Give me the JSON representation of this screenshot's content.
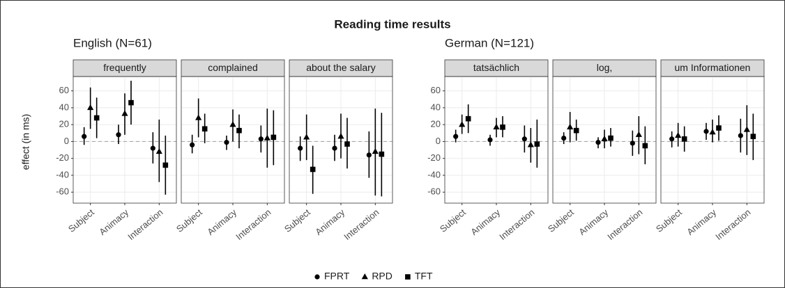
{
  "chart_data": {
    "type": "pointrange",
    "title": "Reading time results",
    "y_label": "effect (in ms)",
    "categories": [
      "Subject",
      "Animacy",
      "Interaction"
    ],
    "ylim": [
      -73,
      77
    ],
    "yticks": [
      -60,
      -40,
      -20,
      0,
      20,
      40,
      60
    ],
    "reference_line": 0,
    "grid": true,
    "legend": "bottom",
    "series": [
      {
        "name": "FPRT",
        "marker": "circle",
        "color": "#000000"
      },
      {
        "name": "RPD",
        "marker": "triangle",
        "color": "#000000"
      },
      {
        "name": "TFT",
        "marker": "square",
        "color": "#000000"
      }
    ],
    "groups": [
      {
        "title": "English (N=61)",
        "panels": [
          {
            "title": "frequently",
            "series": [
              {
                "values": [
                  6,
                  8,
                  -8
                ],
                "lower": [
                  -4,
                  -3,
                  -26
                ],
                "upper": [
                  17,
                  20,
                  11
                ]
              },
              {
                "values": [
                  40,
                  33,
                  -12
                ],
                "lower": [
                  15,
                  8,
                  -48
                ],
                "upper": [
                  64,
                  57,
                  26
                ]
              },
              {
                "values": [
                  28,
                  46,
                  -28
                ],
                "lower": [
                  4,
                  20,
                  -63
                ],
                "upper": [
                  52,
                  72,
                  7
                ]
              }
            ]
          },
          {
            "title": "complained",
            "series": [
              {
                "values": [
                  -4,
                  -1,
                  3
                ],
                "lower": [
                  -14,
                  -10,
                  -13
                ],
                "upper": [
                  8,
                  7,
                  19
                ]
              },
              {
                "values": [
                  28,
                  20,
                  4
                ],
                "lower": [
                  5,
                  0,
                  -31
                ],
                "upper": [
                  51,
                  38,
                  39
                ]
              },
              {
                "values": [
                  15,
                  13,
                  5
                ],
                "lower": [
                  -2,
                  -8,
                  -28
                ],
                "upper": [
                  33,
                  32,
                  37
                ]
              }
            ]
          },
          {
            "title": "about the salary",
            "series": [
              {
                "values": [
                  -8,
                  -8,
                  -16
                ],
                "lower": [
                  -23,
                  -23,
                  -43
                ],
                "upper": [
                  6,
                  8,
                  12
                ]
              },
              {
                "values": [
                  5,
                  6,
                  -12
                ],
                "lower": [
                  -22,
                  -20,
                  -64
                ],
                "upper": [
                  32,
                  33,
                  39
                ]
              },
              {
                "values": [
                  -33,
                  -3,
                  -15
                ],
                "lower": [
                  -62,
                  -32,
                  -65
                ],
                "upper": [
                  -5,
                  28,
                  34
                ]
              }
            ]
          }
        ]
      },
      {
        "title": "German (N=121)",
        "panels": [
          {
            "title": "tatsächlich",
            "series": [
              {
                "values": [
                  6,
                  2,
                  3
                ],
                "lower": [
                  -1,
                  -5,
                  -13
                ],
                "upper": [
                  14,
                  8,
                  19
                ]
              },
              {
                "values": [
                  20,
                  17,
                  -4
                ],
                "lower": [
                  9,
                  5,
                  -25
                ],
                "upper": [
                  32,
                  28,
                  16
                ]
              },
              {
                "values": [
                  27,
                  17,
                  -3
                ],
                "lower": [
                  10,
                  5,
                  -31
                ],
                "upper": [
                  44,
                  30,
                  26
                ]
              }
            ]
          },
          {
            "title": "log,",
            "series": [
              {
                "values": [
                  4,
                  -1,
                  -2
                ],
                "lower": [
                  -3,
                  -8,
                  -17
                ],
                "upper": [
                  11,
                  5,
                  13
                ]
              },
              {
                "values": [
                  17,
                  3,
                  8
                ],
                "lower": [
                  -1,
                  -8,
                  -15
                ],
                "upper": [
                  35,
                  14,
                  30
                ]
              },
              {
                "values": [
                  13,
                  4,
                  -5
                ],
                "lower": [
                  1,
                  -6,
                  -27
                ],
                "upper": [
                  26,
                  16,
                  18
                ]
              }
            ]
          },
          {
            "title": "um Informationen",
            "series": [
              {
                "values": [
                  3,
                  12,
                  7
                ],
                "lower": [
                  -7,
                  2,
                  -13
                ],
                "upper": [
                  12,
                  22,
                  27
                ]
              },
              {
                "values": [
                  7,
                  11,
                  14
                ],
                "lower": [
                  -6,
                  -1,
                  -16
                ],
                "upper": [
                  22,
                  26,
                  43
                ]
              },
              {
                "values": [
                  3,
                  16,
                  6
                ],
                "lower": [
                  -12,
                  1,
                  -22
                ],
                "upper": [
                  18,
                  31,
                  33
                ]
              }
            ]
          }
        ]
      }
    ]
  }
}
